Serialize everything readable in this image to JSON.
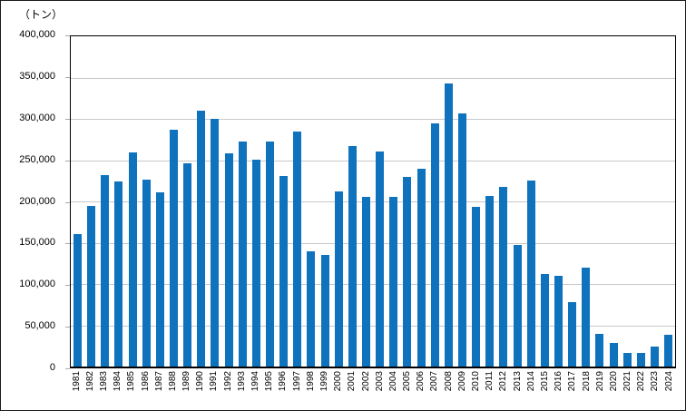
{
  "chart_data": {
    "type": "bar",
    "title": "",
    "unit_label": "（トン）",
    "xlabel": "",
    "ylabel": "（トン）",
    "ylim": [
      0,
      400000
    ],
    "ytick_interval": 50000,
    "ytick_labels": [
      "0",
      "50,000",
      "100,000",
      "150,000",
      "200,000",
      "250,000",
      "300,000",
      "350,000",
      "400,000"
    ],
    "grid": "on",
    "legend": "none",
    "bar_color": "#0e72bd",
    "gridline_color": "#c8c8c8",
    "axis_color": "#000000",
    "categories": [
      "1981",
      "1982",
      "1983",
      "1984",
      "1985",
      "1986",
      "1987",
      "1988",
      "1989",
      "1990",
      "1991",
      "1992",
      "1993",
      "1994",
      "1995",
      "1996",
      "1997",
      "1998",
      "1999",
      "2000",
      "2001",
      "2002",
      "2003",
      "2004",
      "2005",
      "2006",
      "2007",
      "2008",
      "2009",
      "2010",
      "2011",
      "2012",
      "2013",
      "2014",
      "2015",
      "2016",
      "2017",
      "2018",
      "2019",
      "2020",
      "2021",
      "2022",
      "2023",
      "2024"
    ],
    "values": [
      160000,
      195000,
      232000,
      224000,
      259000,
      226000,
      211000,
      287000,
      246000,
      310000,
      300000,
      258000,
      273000,
      251000,
      273000,
      231000,
      285000,
      140000,
      135000,
      212000,
      267000,
      206000,
      260000,
      205000,
      230000,
      240000,
      295000,
      343000,
      307000,
      193000,
      207000,
      218000,
      147000,
      225000,
      112000,
      110000,
      78000,
      120000,
      40000,
      29000,
      17000,
      17000,
      24000,
      38000
    ]
  }
}
